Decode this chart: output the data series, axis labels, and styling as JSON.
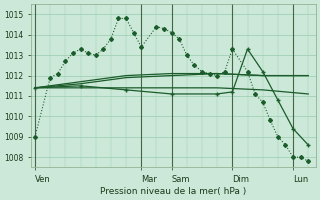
{
  "bg_color": "#cce8d8",
  "grid_color": "#99ccb0",
  "line_color": "#1a5c2a",
  "title": "Pression niveau de la mer( hPa )",
  "ylim": [
    1007.5,
    1015.5
  ],
  "yticks": [
    1008,
    1009,
    1010,
    1011,
    1012,
    1013,
    1014,
    1015
  ],
  "day_labels": [
    "Ven",
    "Mar",
    "Sam",
    "Dim",
    "Lun"
  ],
  "day_positions": [
    0,
    14,
    18,
    26,
    34
  ],
  "xlim": [
    -0.5,
    37
  ],
  "series1_dotted": {
    "x": [
      0,
      2,
      3,
      4,
      5,
      6,
      7,
      8,
      9,
      10,
      11,
      12,
      13,
      14,
      16,
      17,
      18,
      19,
      20,
      21,
      22,
      23,
      24,
      25,
      26,
      28,
      29,
      30,
      31,
      32,
      33,
      34,
      35,
      36
    ],
    "y": [
      1009.0,
      1011.9,
      1012.1,
      1012.7,
      1013.1,
      1013.3,
      1013.1,
      1013.0,
      1013.3,
      1013.8,
      1014.8,
      1014.8,
      1014.1,
      1013.4,
      1014.4,
      1014.3,
      1014.1,
      1013.8,
      1013.0,
      1012.5,
      1012.2,
      1012.1,
      1012.0,
      1012.2,
      1013.3,
      1012.2,
      1011.1,
      1010.7,
      1009.8,
      1009.0,
      1008.6,
      1008.0,
      1008.0,
      1007.8
    ]
  },
  "series2_flat": {
    "x": [
      0,
      6,
      12,
      18,
      24,
      30,
      36
    ],
    "y": [
      1011.4,
      1011.4,
      1011.4,
      1011.4,
      1011.4,
      1011.3,
      1011.1
    ]
  },
  "series3_rising": {
    "x": [
      0,
      6,
      12,
      18,
      24,
      30,
      36
    ],
    "y": [
      1011.4,
      1011.6,
      1011.9,
      1012.0,
      1012.1,
      1012.0,
      1012.0
    ]
  },
  "series4_medium": {
    "x": [
      0,
      6,
      12,
      18,
      24,
      30,
      36
    ],
    "y": [
      1011.4,
      1011.7,
      1012.0,
      1012.1,
      1012.1,
      1012.0,
      1012.0
    ]
  },
  "series5_down": {
    "x": [
      0,
      6,
      12,
      18,
      24,
      26,
      28,
      30,
      32,
      34,
      36
    ],
    "y": [
      1011.4,
      1011.5,
      1011.3,
      1011.1,
      1011.1,
      1011.2,
      1013.3,
      1012.2,
      1010.8,
      1009.4,
      1008.6
    ]
  }
}
